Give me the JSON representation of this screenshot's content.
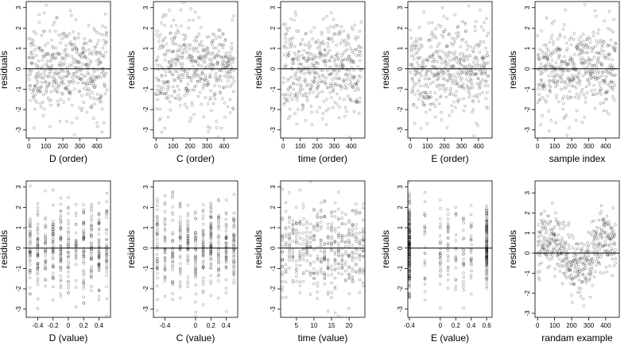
{
  "chart_data": [
    {
      "type": "scatter",
      "xlabel": "D (order)",
      "ylabel": "residuals",
      "xlim": [
        -15,
        480
      ],
      "ylim": [
        -3.4,
        3.3
      ],
      "xticks": [
        0,
        100,
        200,
        300,
        400
      ],
      "yticks": [
        -3,
        -2,
        -1,
        0,
        1,
        2,
        3
      ],
      "hline": 0,
      "pattern": "order",
      "n": 460,
      "seed": 11
    },
    {
      "type": "scatter",
      "xlabel": "C (order)",
      "ylabel": "residuals",
      "xlim": [
        -15,
        480
      ],
      "ylim": [
        -3.4,
        3.3
      ],
      "xticks": [
        0,
        100,
        200,
        300,
        400
      ],
      "yticks": [
        -3,
        -2,
        -1,
        0,
        1,
        2,
        3
      ],
      "hline": 0,
      "pattern": "order",
      "n": 460,
      "seed": 23
    },
    {
      "type": "scatter",
      "xlabel": "time (order)",
      "ylabel": "residuals",
      "xlim": [
        -15,
        480
      ],
      "ylim": [
        -3.4,
        3.3
      ],
      "xticks": [
        0,
        100,
        200,
        300,
        400
      ],
      "yticks": [
        -3,
        -2,
        -1,
        0,
        1,
        2,
        3
      ],
      "hline": 0,
      "pattern": "order",
      "n": 460,
      "seed": 37
    },
    {
      "type": "scatter",
      "xlabel": "E (order)",
      "ylabel": "residuals",
      "xlim": [
        -15,
        480
      ],
      "ylim": [
        -3.4,
        3.3
      ],
      "xticks": [
        0,
        100,
        200,
        300,
        400
      ],
      "yticks": [
        -3,
        -2,
        -1,
        0,
        1,
        2,
        3
      ],
      "hline": 0,
      "pattern": "order",
      "n": 460,
      "seed": 41
    },
    {
      "type": "scatter",
      "xlabel": "sample index",
      "ylabel": "residuals",
      "xlim": [
        -15,
        480
      ],
      "ylim": [
        -3.4,
        3.3
      ],
      "xticks": [
        0,
        100,
        200,
        300,
        400
      ],
      "yticks": [
        -3,
        -2,
        -1,
        0,
        1,
        2,
        3
      ],
      "hline": 0,
      "pattern": "order",
      "n": 460,
      "seed": 53
    },
    {
      "type": "scatter",
      "xlabel": "D (value)",
      "ylabel": "residuals",
      "xlim": [
        -0.55,
        0.55
      ],
      "ylim": [
        -3.4,
        3.3
      ],
      "xticks": [
        -0.4,
        -0.2,
        0.0,
        0.2,
        0.4
      ],
      "yticks": [
        -3,
        -2,
        -1,
        0,
        1,
        2,
        3
      ],
      "hline": 0,
      "pattern": "discrete",
      "levels": [
        -0.5,
        -0.4,
        -0.3,
        -0.2,
        -0.1,
        0.0,
        0.1,
        0.2,
        0.3,
        0.4,
        0.5
      ],
      "n": 460,
      "seed": 61
    },
    {
      "type": "scatter",
      "xlabel": "C (value)",
      "ylabel": "residuals",
      "xlim": [
        -0.55,
        0.55
      ],
      "ylim": [
        -3.4,
        3.3
      ],
      "xticks": [
        -0.4,
        0.0,
        0.2,
        0.4
      ],
      "yticks": [
        -3,
        -2,
        -1,
        0,
        1,
        2,
        3
      ],
      "hline": 0,
      "pattern": "discrete",
      "levels": [
        -0.5,
        -0.4,
        -0.3,
        -0.2,
        -0.1,
        0.0,
        0.1,
        0.2,
        0.3,
        0.4,
        0.5
      ],
      "n": 460,
      "seed": 71
    },
    {
      "type": "scatter",
      "xlabel": "time (value)",
      "ylabel": "residuals",
      "xlim": [
        0.5,
        24.5
      ],
      "ylim": [
        -3.4,
        3.3
      ],
      "xticks": [
        5,
        10,
        15,
        20
      ],
      "yticks": [
        -3,
        -2,
        -1,
        0,
        1,
        2,
        3
      ],
      "hline": 0,
      "pattern": "discrete",
      "levels": [
        1,
        2,
        3,
        4,
        5,
        6,
        7,
        8,
        9,
        10,
        11,
        12,
        13,
        14,
        15,
        16,
        17,
        18,
        19,
        20,
        21,
        22,
        23,
        24
      ],
      "n": 460,
      "seed": 83
    },
    {
      "type": "scatter",
      "xlabel": "E (value)",
      "ylabel": "residuals",
      "xlim": [
        -0.42,
        0.67
      ],
      "ylim": [
        -3.4,
        3.3
      ],
      "xticks": [
        -0.4,
        0.0,
        0.2,
        0.4,
        0.6
      ],
      "yticks": [
        -3,
        -2,
        -1,
        0,
        1,
        2,
        3
      ],
      "hline": 0,
      "pattern": "skewed",
      "levels": [
        -0.4,
        -0.2,
        0.0,
        0.1,
        0.2,
        0.3,
        0.4,
        0.6
      ],
      "n": 460,
      "seed": 97
    },
    {
      "type": "scatter",
      "xlabel": "randam example",
      "ylabel": "residuals",
      "xlim": [
        -15,
        480
      ],
      "ylim": [
        -3.2,
        3.6
      ],
      "xticks": [
        0,
        100,
        200,
        300,
        400
      ],
      "yticks": [
        -3,
        -2,
        -1,
        0,
        1,
        2,
        3
      ],
      "hline": 0,
      "pattern": "sine",
      "n": 460,
      "seed": 101
    }
  ]
}
